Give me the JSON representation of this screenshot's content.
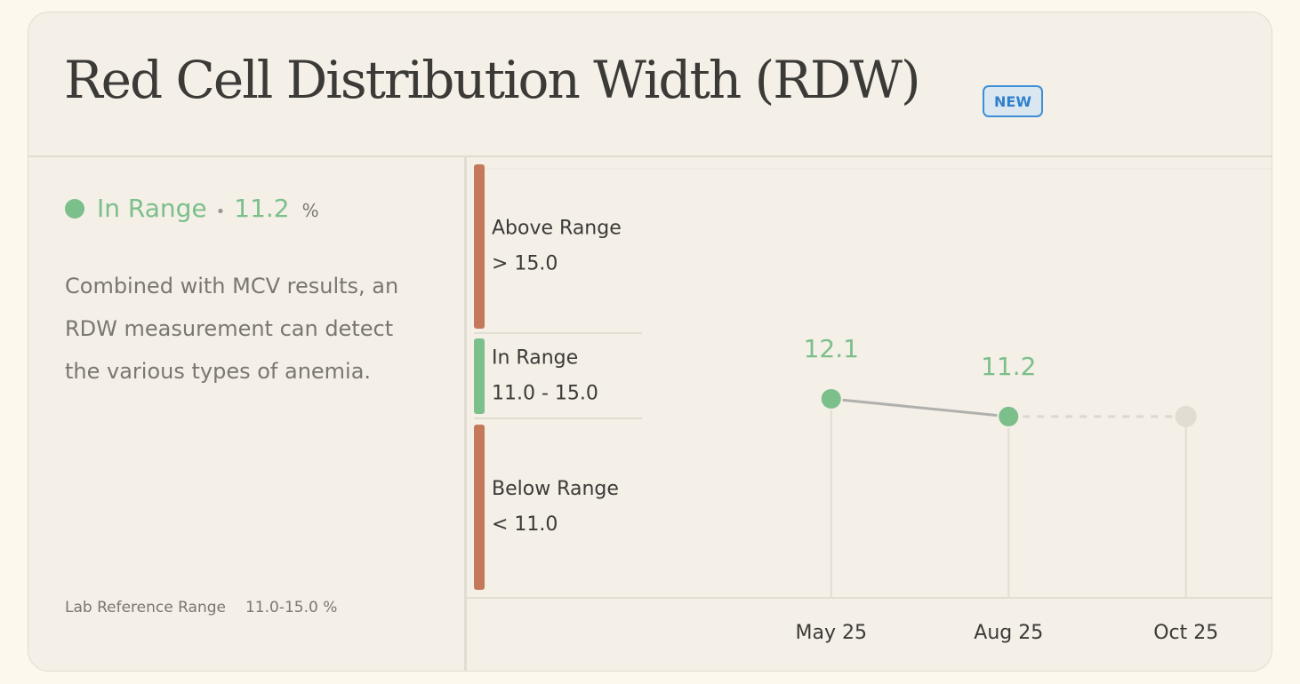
{
  "header": {
    "title": "Red Cell Distribution Width (RDW)",
    "badge": "NEW"
  },
  "status": {
    "label": "In Range",
    "value": 11.2,
    "unit": "%"
  },
  "description": "Combined with MCV results, an RDW measurement can detect the various types of anemia.",
  "reference": {
    "label": "Lab Reference Range",
    "value": "11.0-15.0 %"
  },
  "ranges": [
    {
      "label": "Above Range",
      "range": "> 15.0",
      "color": "#c47a5a"
    },
    {
      "label": "In Range",
      "range": "11.0 - 15.0",
      "color": "#7bbf8a"
    },
    {
      "label": "Below Range",
      "range": "< 11.0",
      "color": "#c47a5a"
    }
  ],
  "chart_data": {
    "type": "line",
    "categories": [
      "May 25",
      "Aug 25",
      "Oct 25"
    ],
    "values": [
      12.1,
      11.2,
      null
    ],
    "color": "#7bbf8a",
    "ylim": [
      2,
      24
    ]
  }
}
